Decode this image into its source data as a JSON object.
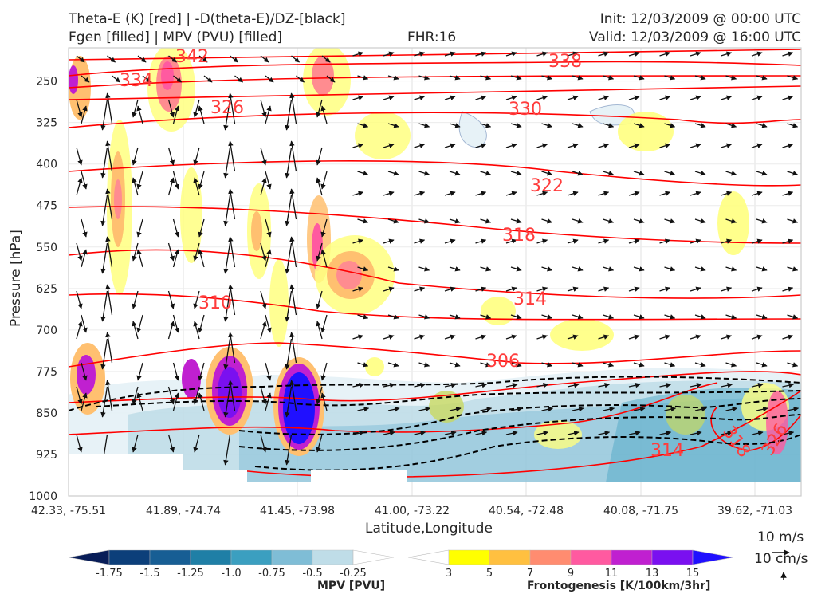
{
  "header": {
    "title_line1": "Theta-E (K) [red] | -D(theta-E)/DZ-[black]",
    "title_line2": "Fgen [filled] | MPV (PVU) [filled]",
    "fhr": "FHR:16",
    "init": "Init: 12/03/2009 @ 00:00 UTC",
    "valid": "Valid: 12/03/2009 @ 16:00 UTC"
  },
  "chart_data": {
    "type": "cross-section",
    "xlabel": "Latitude,Longitude",
    "ylabel": "Pressure [hPa]",
    "x_ticks": [
      "42.33, -75.51",
      "41.89, -74.74",
      "41.45, -73.98",
      "41.00, -73.22",
      "40.54, -72.48",
      "40.08, -71.75",
      "39.62, -71.03"
    ],
    "y_ticks": [
      250,
      325,
      400,
      475,
      550,
      625,
      700,
      775,
      850,
      925,
      1000
    ],
    "ylim": [
      1000,
      190
    ],
    "y_scale": "linear-reversed",
    "grid": true,
    "theta_e_contours": {
      "color": "#ff0000",
      "labels": [
        "342",
        "338",
        "334",
        "330",
        "326",
        "322",
        "318",
        "314",
        "310",
        "306",
        "314",
        "318",
        "326"
      ]
    },
    "mpv_colorbar": {
      "title": "MPV [PVU]",
      "ticks": [
        "-1.75",
        "-1.5",
        "-1.25",
        "-1.0",
        "-0.75",
        "-0.5",
        "-0.25"
      ],
      "colors": [
        "#081d58",
        "#0c3f7a",
        "#175e94",
        "#1f7fa6",
        "#3b9fc0",
        "#7fbdd6",
        "#bfdde8",
        "#ffffff"
      ]
    },
    "fgen_colorbar": {
      "title": "Frontogenesis [K/100km/3hr]",
      "ticks": [
        "3",
        "5",
        "7",
        "9",
        "11",
        "13",
        "15"
      ],
      "colors": [
        "#ffffff",
        "#ffff00",
        "#ffc040",
        "#ff8c70",
        "#ff5aa0",
        "#c020d0",
        "#7a10f0",
        "#2010ff"
      ]
    },
    "vector_key": {
      "label_h": "10 m/s",
      "label_v": "10 cm/s"
    }
  }
}
